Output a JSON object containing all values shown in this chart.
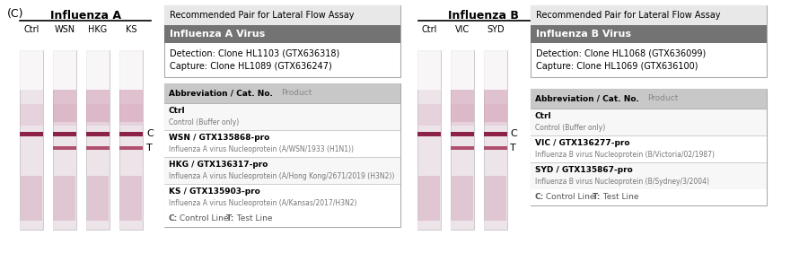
{
  "background_color": "#ffffff",
  "panel_label": "(C)",
  "flu_a": {
    "title": "Influenza A",
    "columns": [
      "Ctrl",
      "WSN",
      "HKG",
      "KS"
    ],
    "strips": [
      {
        "c_band": true,
        "t_band": false,
        "top_pink": false
      },
      {
        "c_band": true,
        "t_band": true,
        "top_pink": true
      },
      {
        "c_band": true,
        "t_band": true,
        "top_pink": true
      },
      {
        "c_band": true,
        "t_band": true,
        "top_pink": true
      }
    ]
  },
  "flu_b": {
    "title": "Influenza B",
    "columns": [
      "Ctrl",
      "VIC",
      "SYD"
    ],
    "strips": [
      {
        "c_band": true,
        "t_band": false,
        "top_pink": false
      },
      {
        "c_band": true,
        "t_band": true,
        "top_pink": true
      },
      {
        "c_band": true,
        "t_band": true,
        "top_pink": true
      }
    ]
  },
  "box_a": {
    "title": "Recommended Pair for Lateral Flow Assay",
    "subtitle": "Influenza A Virus",
    "subtitle_bg": "#737373",
    "line1": "Detection: Clone HL1103 (GTX636318)",
    "line2": "Capture: Clone HL1089 (GTX636247)"
  },
  "box_b": {
    "title": "Recommended Pair for Lateral Flow Assay",
    "subtitle": "Influenza B Virus",
    "subtitle_bg": "#737373",
    "line1": "Detection: Clone HL1068 (GTX636099)",
    "line2": "Capture: Clone HL1069 (GTX636100)"
  },
  "table_a": {
    "header_abbr": "Abbreviation / Cat. No.",
    "header_prod": "Product",
    "rows": [
      {
        "abbr": "Ctrl",
        "abbr_bold": "Ctrl",
        "cat": "",
        "desc": "Control (Buffer only)"
      },
      {
        "abbr": "WSN / GTX135868-pro",
        "abbr_bold": "WSN / GTX135868-pro",
        "cat": "",
        "desc": "Influenza A virus Nucleoprotein (A/WSN/1933 (H1N1))"
      },
      {
        "abbr": "HKG / GTX136317-pro",
        "abbr_bold": "HKG / GTX136317-pro",
        "cat": "",
        "desc": "Influenza A virus Nucleoprotein (A/Hong Kong/2671/2019 (H3N2))"
      },
      {
        "abbr": "KS / GTX135903-pro",
        "abbr_bold": "KS / GTX135903-pro",
        "cat": "",
        "desc": "Influenza A virus Nucleoprotein (A/Kansas/2017/H3N2)"
      }
    ],
    "footer_c": "C:",
    "footer_c_text": " Control Line",
    "footer_t": "T:",
    "footer_t_text": " Test Line"
  },
  "table_b": {
    "header_abbr": "Abbreviation / Cat. No.",
    "header_prod": "Product",
    "rows": [
      {
        "abbr": "Ctrl",
        "abbr_bold": "Ctrl",
        "cat": "",
        "desc": "Control (Buffer only)"
      },
      {
        "abbr": "VIC / GTX136277-pro",
        "abbr_bold": "VIC / GTX136277-pro",
        "cat": "",
        "desc": "Influenza B virus Nucleoprotein (B/Victoria/02/1987)"
      },
      {
        "abbr": "SYD / GTX135867-pro",
        "abbr_bold": "SYD / GTX135867-pro",
        "cat": "",
        "desc": "Influenza B virus Nucleoprotein (B/Sydney/3/2004)"
      }
    ],
    "footer_c": "C:",
    "footer_c_text": " Control Line",
    "footer_t": "T:",
    "footer_t_text": " Test Line"
  },
  "strip_bg_color": "#ede4ea",
  "strip_top_color": "#f5eff3",
  "band_dark": "#8c2248",
  "band_mid": "#b05070",
  "band_light": "#d4a0b5",
  "band_smear": "#c890a8",
  "border_color": "#aaaaaa",
  "header_bg": "#c8c8c8",
  "row_sep_color": "#cccccc",
  "row_odd_bg": "#f7f7f7",
  "row_even_bg": "#ffffff"
}
